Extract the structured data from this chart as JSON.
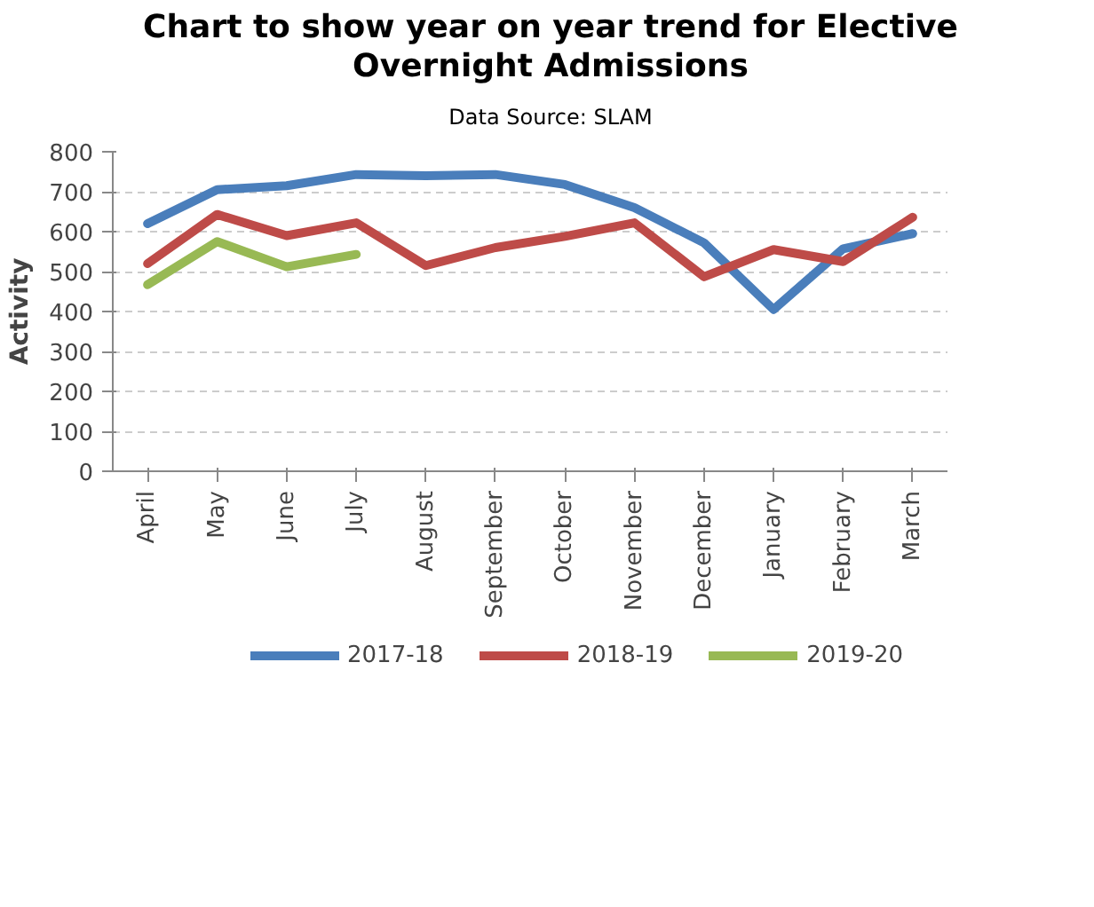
{
  "chart_data": {
    "type": "line",
    "title": "Chart to show year on year trend for Elective Overnight Admissions",
    "subtitle": "Data Source: SLAM",
    "ylabel": "Activity",
    "categories": [
      "April",
      "May",
      "June",
      "July",
      "August",
      "September",
      "October",
      "November",
      "December",
      "January",
      "February",
      "March"
    ],
    "series": [
      {
        "name": "2017-18",
        "color": "#4a7ebb",
        "values": [
          620,
          705,
          715,
          743,
          740,
          743,
          718,
          660,
          572,
          405,
          557,
          595
        ]
      },
      {
        "name": "2018-19",
        "color": "#be4b48",
        "values": [
          520,
          643,
          590,
          622,
          515,
          560,
          588,
          622,
          487,
          555,
          525,
          636
        ]
      },
      {
        "name": "2019-20",
        "color": "#98b954",
        "values": [
          467,
          575,
          512,
          543,
          null,
          null,
          null,
          null,
          null,
          null,
          null,
          null
        ]
      }
    ],
    "ylim": [
      0,
      800
    ],
    "yticks": [
      0,
      100,
      200,
      300,
      400,
      500,
      600,
      700,
      800
    ],
    "grid": "y",
    "legend": "bottom",
    "marker": "none",
    "line_style": "solid"
  }
}
